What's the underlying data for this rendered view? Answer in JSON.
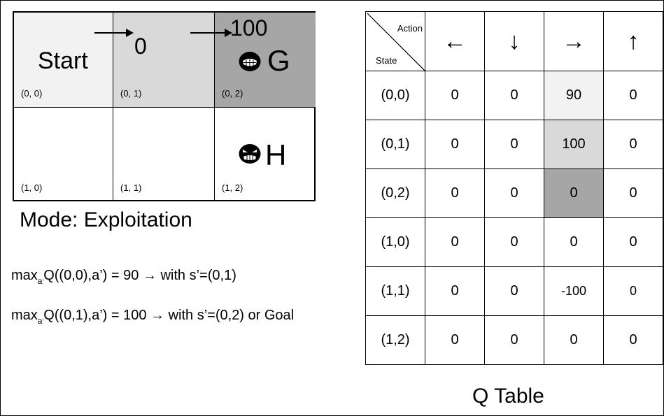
{
  "grid": {
    "start_label": "Start",
    "cells": [
      {
        "coord": "(0, 0)",
        "fill": "#f2f2f2"
      },
      {
        "coord": "(0, 1)",
        "fill": "#d9d9d9"
      },
      {
        "coord": "(0, 2)",
        "fill": "#a6a6a6"
      },
      {
        "coord": "(1, 0)",
        "fill": "#ffffff"
      },
      {
        "coord": "(1, 1)",
        "fill": "#ffffff"
      },
      {
        "coord": "(1, 2)",
        "fill": "#ffffff"
      }
    ],
    "reward_01": "0",
    "reward_02": "100",
    "goal_label": "G",
    "hole_label": "H",
    "goal_icon": "grinning-face-icon",
    "hole_icon": "angry-face-icon"
  },
  "mode_text": "Mode: Exploitation",
  "formulas": [
    {
      "pre": "max",
      "sub": "a",
      "subsub": "'",
      "post": "Q((0,0),a’) = 90  → with s’=(0,1)"
    },
    {
      "pre": "max",
      "sub": "a",
      "subsub": "'",
      "post": "Q((0,1),a’) = 100 → with s’=(0,2) or Goal"
    }
  ],
  "qtable": {
    "header_action": "Action",
    "header_state": "State",
    "actions": [
      "←",
      "↓",
      "→",
      "↑"
    ],
    "rows": [
      {
        "state": "(0,0)",
        "values": [
          "0",
          "0",
          "90",
          "0"
        ],
        "highlight": 2,
        "hl_color": "#f2f2f2"
      },
      {
        "state": "(0,1)",
        "values": [
          "0",
          "0",
          "100",
          "0"
        ],
        "highlight": 2,
        "hl_color": "#d9d9d9"
      },
      {
        "state": "(0,2)",
        "values": [
          "0",
          "0",
          "0",
          "0"
        ],
        "highlight": 2,
        "hl_color": "#a6a6a6"
      },
      {
        "state": "(1,0)",
        "values": [
          "0",
          "0",
          "0",
          "0"
        ]
      },
      {
        "state": "(1,1)",
        "values": [
          "0",
          "0",
          "-100",
          "0"
        ]
      },
      {
        "state": "(1,2)",
        "values": [
          "0",
          "0",
          "0",
          "0"
        ]
      }
    ],
    "title": "Q Table"
  }
}
